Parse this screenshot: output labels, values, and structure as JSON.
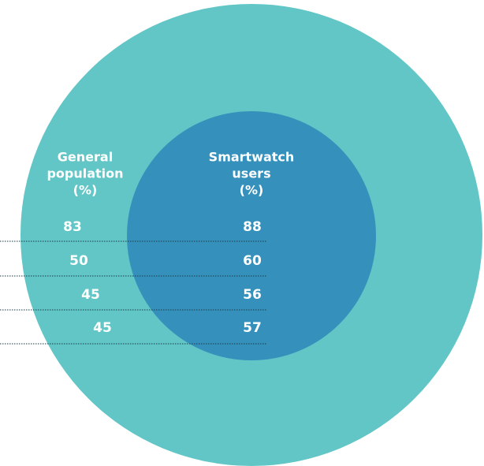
{
  "columns": [
    {
      "header": [
        "General",
        "population",
        "(%)"
      ],
      "values": [
        83,
        50,
        45,
        45
      ]
    },
    {
      "header": [
        "Smartwatch",
        "users",
        "(%)"
      ],
      "values": [
        88,
        60,
        56,
        57
      ]
    }
  ]
}
